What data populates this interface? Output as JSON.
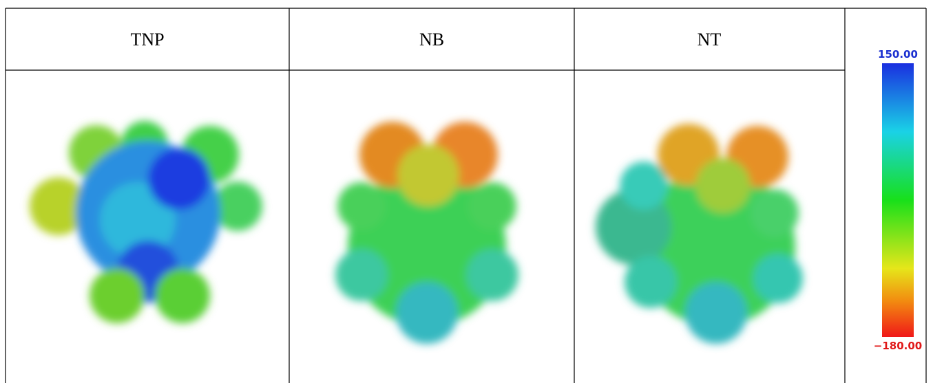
{
  "table": {
    "headers": [
      "TNP",
      "NB",
      "NT"
    ]
  },
  "color_scale": {
    "max_label": "150.00",
    "min_label": "−180.00"
  }
}
